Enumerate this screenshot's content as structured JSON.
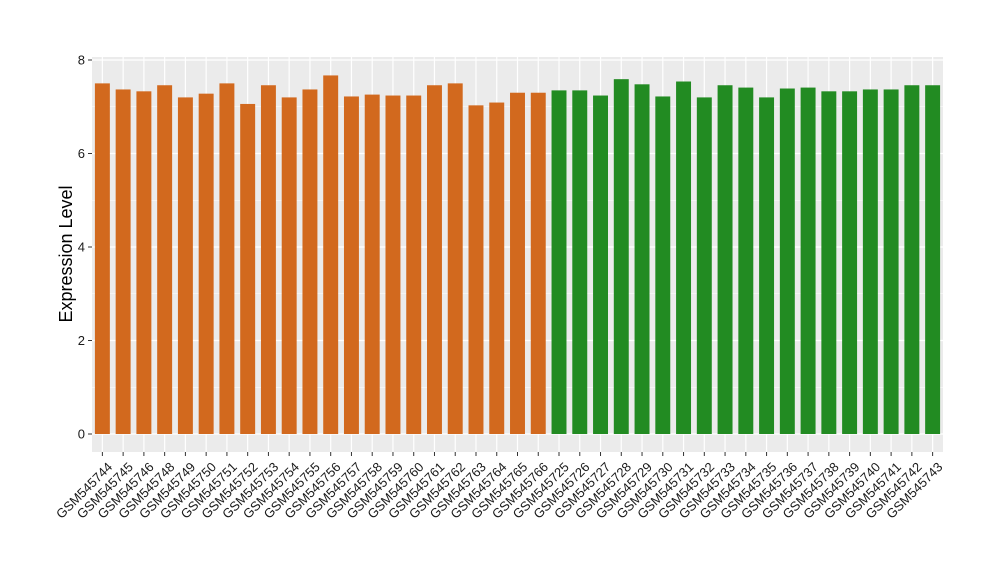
{
  "chart_data": {
    "type": "bar",
    "title": "",
    "xlabel": "",
    "ylabel": "Expression Level",
    "ylim": [
      0,
      8
    ],
    "yticks": [
      0,
      2,
      4,
      6,
      8
    ],
    "grid": true,
    "legend": "none",
    "categories": [
      "GSM545744",
      "GSM545745",
      "GSM545746",
      "GSM545748",
      "GSM545749",
      "GSM545750",
      "GSM545751",
      "GSM545752",
      "GSM545753",
      "GSM545754",
      "GSM545755",
      "GSM545756",
      "GSM545757",
      "GSM545758",
      "GSM545759",
      "GSM545760",
      "GSM545761",
      "GSM545762",
      "GSM545763",
      "GSM545764",
      "GSM545765",
      "GSM545766",
      "GSM545725",
      "GSM545726",
      "GSM545727",
      "GSM545728",
      "GSM545729",
      "GSM545730",
      "GSM545731",
      "GSM545732",
      "GSM545733",
      "GSM545734",
      "GSM545735",
      "GSM545736",
      "GSM545737",
      "GSM545738",
      "GSM545739",
      "GSM545740",
      "GSM545741",
      "GSM545742",
      "GSM545743"
    ],
    "values": [
      7.5,
      7.37,
      7.33,
      7.46,
      7.2,
      7.28,
      7.5,
      7.06,
      7.46,
      7.2,
      7.37,
      7.67,
      7.22,
      7.26,
      7.24,
      7.24,
      7.46,
      7.5,
      7.03,
      7.09,
      7.3,
      7.3,
      7.35,
      7.35,
      7.24,
      7.59,
      7.48,
      7.22,
      7.54,
      7.2,
      7.46,
      7.41,
      7.2,
      7.39,
      7.41,
      7.33,
      7.33,
      7.37,
      7.37,
      7.46,
      7.46
    ],
    "bar_colors": [
      "#d2691e",
      "#d2691e",
      "#d2691e",
      "#d2691e",
      "#d2691e",
      "#d2691e",
      "#d2691e",
      "#d2691e",
      "#d2691e",
      "#d2691e",
      "#d2691e",
      "#d2691e",
      "#d2691e",
      "#d2691e",
      "#d2691e",
      "#d2691e",
      "#d2691e",
      "#d2691e",
      "#d2691e",
      "#d2691e",
      "#d2691e",
      "#d2691e",
      "#228b22",
      "#228b22",
      "#228b22",
      "#228b22",
      "#228b22",
      "#228b22",
      "#228b22",
      "#228b22",
      "#228b22",
      "#228b22",
      "#228b22",
      "#228b22",
      "#228b22",
      "#228b22",
      "#228b22",
      "#228b22",
      "#228b22",
      "#228b22",
      "#228b22"
    ],
    "panel_background": "#ebebeb",
    "gridline_color": "#ffffff"
  }
}
